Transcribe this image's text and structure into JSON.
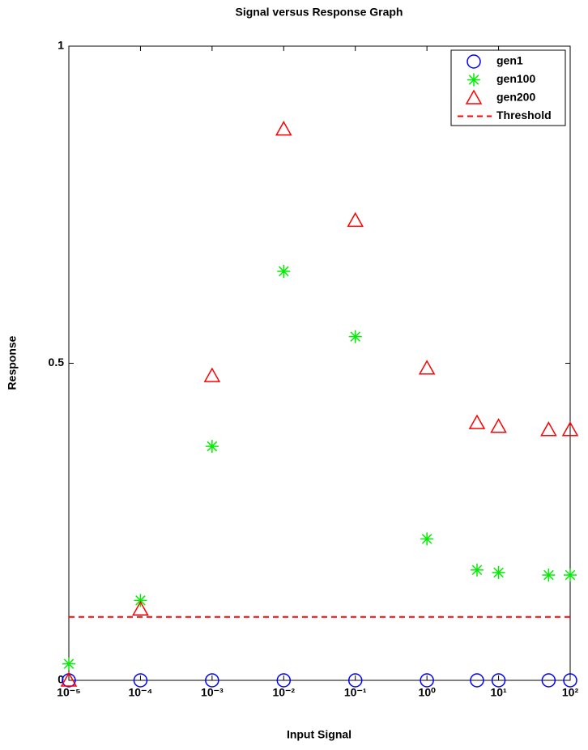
{
  "chart_data": {
    "type": "scatter",
    "title": "Signal versus Response Graph",
    "x_label": "Input Signal",
    "y_label": "Response",
    "x": [
      1e-05,
      0.0001,
      0.001,
      0.01,
      0.1,
      1,
      5,
      10,
      50,
      100
    ],
    "series": [
      {
        "name": "gen1",
        "color": "#0000ff",
        "marker": "circle",
        "values": [
          0,
          0,
          0,
          0,
          0,
          0,
          0,
          0,
          0,
          0
        ]
      },
      {
        "name": "gen100",
        "color": "#00ee00",
        "marker": "star",
        "values": [
          0.026,
          0.126,
          0.369,
          0.645,
          0.542,
          0.223,
          0.174,
          0.17,
          0.166,
          0.166
        ]
      },
      {
        "name": "gen200",
        "color": "#ff0000",
        "marker": "triangle",
        "values": [
          0,
          0.112,
          0.48,
          0.869,
          0.725,
          0.492,
          0.406,
          0.4,
          0.395,
          0.395
        ]
      }
    ],
    "threshold": {
      "name": "Threshold",
      "value": 0.1,
      "color": "#ff0000"
    },
    "xscale": "log",
    "xlim": [
      1e-05,
      100
    ],
    "xticks": [
      {
        "value": 1e-05,
        "label": "10⁻⁵"
      },
      {
        "value": 0.0001,
        "label": "10⁻⁴"
      },
      {
        "value": 0.001,
        "label": "10⁻³"
      },
      {
        "value": 0.01,
        "label": "10⁻²"
      },
      {
        "value": 0.1,
        "label": "10⁻¹"
      },
      {
        "value": 1,
        "label": "10⁰"
      },
      {
        "value": 10,
        "label": "10¹"
      },
      {
        "value": 100,
        "label": "10²"
      }
    ],
    "ylim": [
      0,
      1
    ],
    "yticks": [
      0,
      0.5,
      1
    ],
    "legend": "upper-right"
  }
}
